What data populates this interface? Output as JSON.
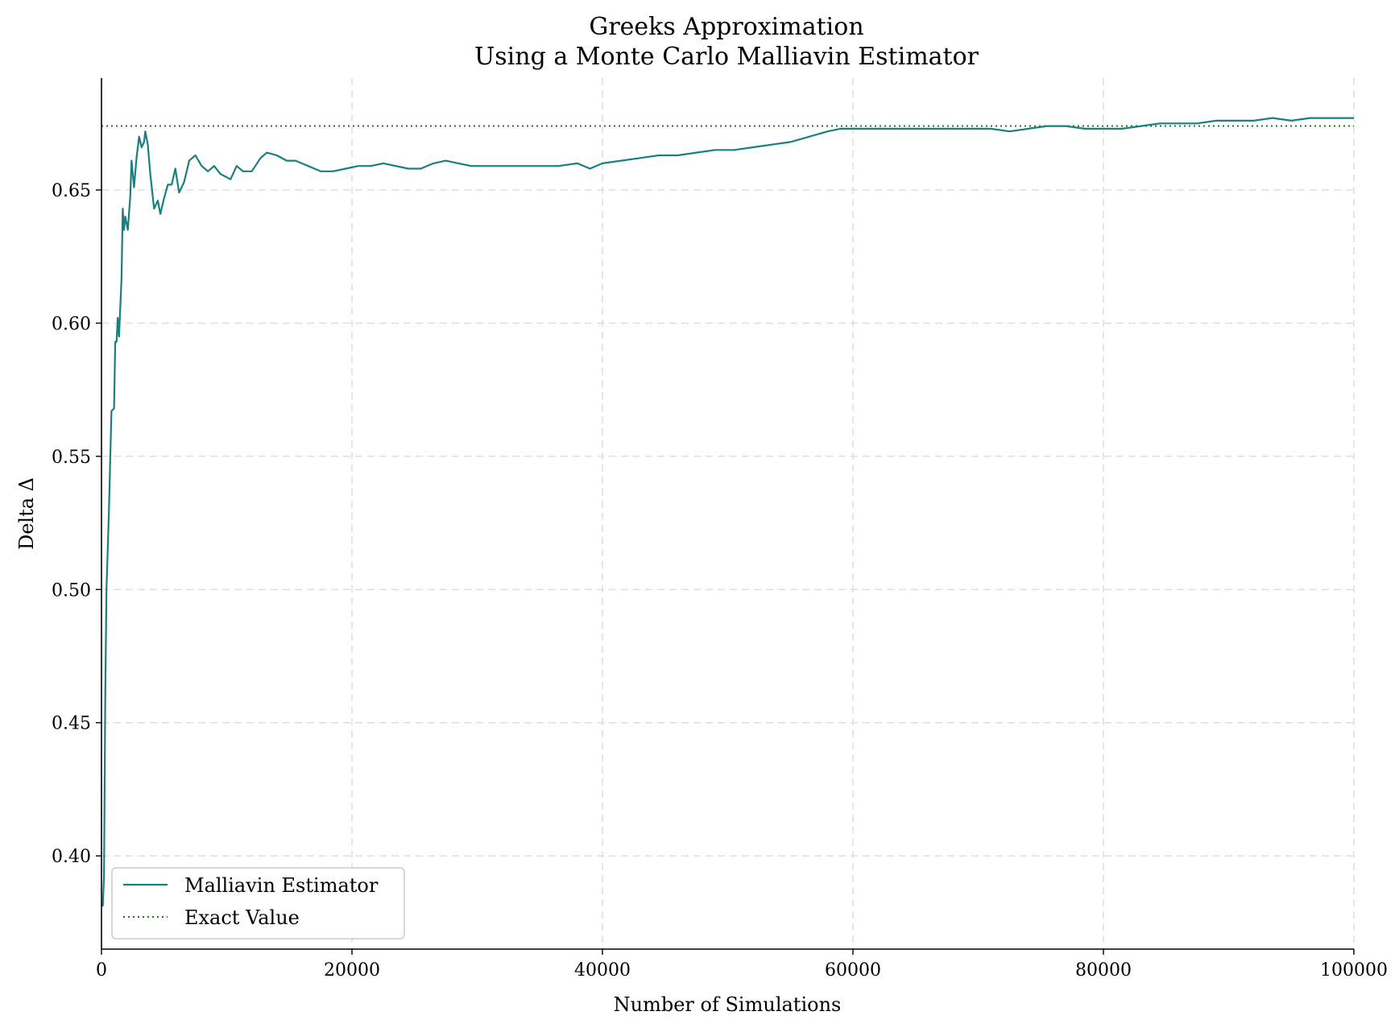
{
  "chart_data": {
    "type": "line",
    "title": [
      "Greeks Approximation",
      "Using a Monte Carlo Malliavin Estimator"
    ],
    "xlabel": "Number of Simulations",
    "ylabel": "Delta Δ",
    "xlim": [
      0,
      100000
    ],
    "ylim": [
      0.365,
      0.692
    ],
    "xticks": [
      0,
      20000,
      40000,
      60000,
      80000,
      100000
    ],
    "xtick_labels": [
      "0",
      "20000",
      "40000",
      "60000",
      "80000",
      "100000"
    ],
    "yticks": [
      0.4,
      0.45,
      0.5,
      0.55,
      0.6,
      0.65
    ],
    "ytick_labels": [
      "0.40",
      "0.45",
      "0.50",
      "0.55",
      "0.60",
      "0.65"
    ],
    "grid": true,
    "legend_position": "lower-left",
    "series": [
      {
        "name": "Malliavin Estimator",
        "style": "solid",
        "color": "#1a7f7f",
        "points": [
          [
            100,
            0.381
          ],
          [
            200,
            0.392
          ],
          [
            300,
            0.46
          ],
          [
            400,
            0.5
          ],
          [
            600,
            0.53
          ],
          [
            800,
            0.567
          ],
          [
            1000,
            0.568
          ],
          [
            1100,
            0.593
          ],
          [
            1200,
            0.593
          ],
          [
            1300,
            0.602
          ],
          [
            1400,
            0.595
          ],
          [
            1600,
            0.617
          ],
          [
            1700,
            0.643
          ],
          [
            1800,
            0.635
          ],
          [
            1900,
            0.64
          ],
          [
            2100,
            0.635
          ],
          [
            2300,
            0.648
          ],
          [
            2400,
            0.661
          ],
          [
            2600,
            0.651
          ],
          [
            2800,
            0.662
          ],
          [
            3000,
            0.67
          ],
          [
            3200,
            0.666
          ],
          [
            3400,
            0.668
          ],
          [
            3500,
            0.672
          ],
          [
            3700,
            0.667
          ],
          [
            3900,
            0.656
          ],
          [
            4200,
            0.643
          ],
          [
            4500,
            0.646
          ],
          [
            4700,
            0.641
          ],
          [
            5000,
            0.647
          ],
          [
            5300,
            0.652
          ],
          [
            5600,
            0.652
          ],
          [
            5900,
            0.658
          ],
          [
            6200,
            0.649
          ],
          [
            6600,
            0.653
          ],
          [
            7000,
            0.661
          ],
          [
            7500,
            0.663
          ],
          [
            8000,
            0.659
          ],
          [
            8500,
            0.657
          ],
          [
            9000,
            0.659
          ],
          [
            9500,
            0.656
          ],
          [
            10300,
            0.654
          ],
          [
            10800,
            0.659
          ],
          [
            11300,
            0.657
          ],
          [
            12000,
            0.657
          ],
          [
            12700,
            0.662
          ],
          [
            13200,
            0.664
          ],
          [
            14000,
            0.663
          ],
          [
            14800,
            0.661
          ],
          [
            15500,
            0.661
          ],
          [
            16500,
            0.659
          ],
          [
            17500,
            0.657
          ],
          [
            18500,
            0.657
          ],
          [
            19500,
            0.658
          ],
          [
            20500,
            0.659
          ],
          [
            21500,
            0.659
          ],
          [
            22500,
            0.66
          ],
          [
            23500,
            0.659
          ],
          [
            24500,
            0.658
          ],
          [
            25500,
            0.658
          ],
          [
            26500,
            0.66
          ],
          [
            27500,
            0.661
          ],
          [
            28500,
            0.66
          ],
          [
            29500,
            0.659
          ],
          [
            30500,
            0.659
          ],
          [
            32000,
            0.659
          ],
          [
            33500,
            0.659
          ],
          [
            35000,
            0.659
          ],
          [
            36500,
            0.659
          ],
          [
            38000,
            0.66
          ],
          [
            39000,
            0.658
          ],
          [
            40000,
            0.66
          ],
          [
            41500,
            0.661
          ],
          [
            43000,
            0.662
          ],
          [
            44500,
            0.663
          ],
          [
            46000,
            0.663
          ],
          [
            47500,
            0.664
          ],
          [
            49000,
            0.665
          ],
          [
            50500,
            0.665
          ],
          [
            52000,
            0.666
          ],
          [
            53500,
            0.667
          ],
          [
            55000,
            0.668
          ],
          [
            56500,
            0.67
          ],
          [
            58000,
            0.672
          ],
          [
            59000,
            0.673
          ],
          [
            60500,
            0.673
          ],
          [
            62000,
            0.673
          ],
          [
            63500,
            0.673
          ],
          [
            65000,
            0.673
          ],
          [
            66500,
            0.673
          ],
          [
            68000,
            0.673
          ],
          [
            69500,
            0.673
          ],
          [
            71000,
            0.673
          ],
          [
            72500,
            0.672
          ],
          [
            74000,
            0.673
          ],
          [
            75500,
            0.674
          ],
          [
            77000,
            0.674
          ],
          [
            78500,
            0.673
          ],
          [
            80000,
            0.673
          ],
          [
            81500,
            0.673
          ],
          [
            83000,
            0.674
          ],
          [
            84500,
            0.675
          ],
          [
            86000,
            0.675
          ],
          [
            87500,
            0.675
          ],
          [
            89000,
            0.676
          ],
          [
            90500,
            0.676
          ],
          [
            92000,
            0.676
          ],
          [
            93500,
            0.677
          ],
          [
            95000,
            0.676
          ],
          [
            96500,
            0.677
          ],
          [
            98000,
            0.677
          ],
          [
            100000,
            0.677
          ]
        ]
      },
      {
        "name": "Exact Value",
        "style": "dotted",
        "color": "#1f7a1f",
        "y": 0.674
      }
    ]
  }
}
